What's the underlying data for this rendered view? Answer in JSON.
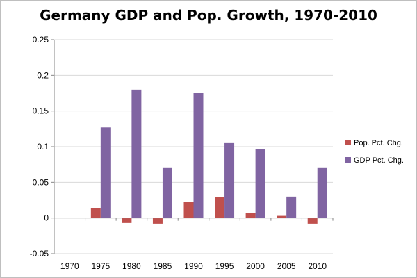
{
  "chart_data": {
    "type": "bar",
    "title": "Germany GDP and Pop. Growth, 1970-2010",
    "xlabel": "",
    "ylabel": "",
    "categories": [
      "1970",
      "1975",
      "1980",
      "1985",
      "1990",
      "1995",
      "2000",
      "2005",
      "2010"
    ],
    "series": [
      {
        "name": "Pop. Pct. Chg.",
        "color": "#c0504d",
        "values": [
          0,
          0.014,
          -0.007,
          -0.008,
          0.023,
          0.029,
          0.007,
          0.003,
          -0.008
        ]
      },
      {
        "name": "GDP Pct. Chg.",
        "color": "#8064a2",
        "values": [
          0,
          0.127,
          0.18,
          0.07,
          0.175,
          0.105,
          0.097,
          0.03,
          0.07
        ]
      }
    ],
    "ylim": [
      -0.05,
      0.25
    ],
    "yticks": [
      -0.05,
      0,
      0.05,
      0.1,
      0.15,
      0.2,
      0.25
    ],
    "ytick_labels": [
      "-0.05",
      "0",
      "0.05",
      "0.1",
      "0.15",
      "0.2",
      "0.25"
    ],
    "grid": true,
    "legend_position": "right"
  }
}
